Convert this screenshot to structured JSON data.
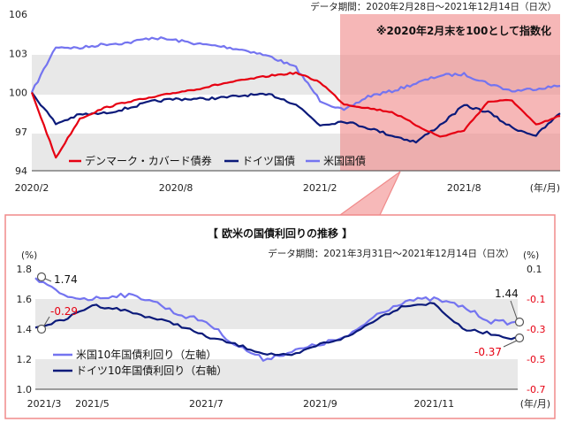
{
  "top_chart": {
    "note": "データ期間：2020年2月28日～2021年12月14日（日次）",
    "annotation": "※2020年2月末を100として指数化",
    "y_ticks": [
      "94",
      "97",
      "100",
      "103",
      "106"
    ],
    "x_ticks": [
      "2020/2",
      "2020/8",
      "2021/2",
      "2021/8"
    ],
    "x_unit": "(年/月)",
    "legend": {
      "denmark": "デンマーク・カバード債券",
      "germany": "ドイツ国債",
      "us": "米国国債"
    }
  },
  "bottom_chart": {
    "title": "【 欧米の国債利回りの推移 】",
    "note": "データ期間：2021年3月31日～2021年12月14日（日次）",
    "y_unit_left": "(%)",
    "y_unit_right": "(%)",
    "y_ticks_left": [
      "1.0",
      "1.2",
      "1.4",
      "1.6",
      "1.8"
    ],
    "y_ticks_right": [
      "-0.7",
      "-0.5",
      "-0.3",
      "-0.1",
      "0.1"
    ],
    "x_ticks": [
      "2021/3",
      "2021/5",
      "2021/7",
      "2021/9",
      "2021/11"
    ],
    "x_unit": "(年/月)",
    "legend": {
      "us10": "米国10年国債利回り（左軸）",
      "de10": "ドイツ10年国債利回り（右軸）"
    },
    "labels": {
      "us_start": "1.74",
      "de_start": "-0.29",
      "us_end": "1.44",
      "de_end": "-0.37"
    }
  },
  "colors": {
    "red": "#e60012",
    "navy": "#0b1a7a",
    "lavender": "#7474f0",
    "shade": "#f08a8a",
    "band": "#e8e8e8"
  },
  "chart_data": [
    {
      "type": "line",
      "x": [
        "2020/2",
        "2020/3",
        "2020/4",
        "2020/5",
        "2020/6",
        "2020/7",
        "2020/8",
        "2020/9",
        "2020/10",
        "2020/11",
        "2020/12",
        "2021/1",
        "2021/2",
        "2021/3",
        "2021/4",
        "2021/5",
        "2021/6",
        "2021/7",
        "2021/8",
        "2021/9",
        "2021/10",
        "2021/11",
        "2021/12"
      ],
      "series": [
        {
          "name": "デンマーク・カバード債券",
          "values": [
            100.0,
            95.0,
            98.0,
            98.8,
            99.3,
            99.6,
            100.0,
            100.3,
            100.7,
            101.0,
            101.3,
            101.5,
            100.8,
            99.1,
            98.8,
            98.5,
            97.5,
            96.6,
            97.1,
            99.3,
            99.4,
            97.5,
            98.2
          ]
        },
        {
          "name": "ドイツ国債",
          "values": [
            100.0,
            97.6,
            98.3,
            98.4,
            98.8,
            99.3,
            99.5,
            99.5,
            99.6,
            99.8,
            99.8,
            99.1,
            97.5,
            97.8,
            97.3,
            96.7,
            96.2,
            97.5,
            99.0,
            98.5,
            97.3,
            96.7,
            98.4
          ]
        },
        {
          "name": "米国国債",
          "values": [
            100.0,
            103.5,
            103.4,
            103.7,
            103.8,
            104.2,
            104.0,
            103.7,
            103.5,
            103.2,
            102.7,
            101.9,
            99.4,
            98.6,
            99.7,
            100.1,
            100.7,
            101.3,
            101.4,
            100.7,
            100.1,
            100.3,
            100.5
          ]
        }
      ],
      "ylim": [
        94,
        106
      ],
      "shaded_from": "2021/3"
    },
    {
      "type": "line",
      "title": "【 欧米の国債利回りの推移 】",
      "x": [
        "2021/3/31",
        "2021/4/15",
        "2021/5/1",
        "2021/5/15",
        "2021/6/1",
        "2021/6/15",
        "2021/7/1",
        "2021/7/15",
        "2021/8/1",
        "2021/8/15",
        "2021/9/1",
        "2021/9/15",
        "2021/10/1",
        "2021/10/15",
        "2021/11/1",
        "2021/11/15",
        "2021/12/1",
        "2021/12/14"
      ],
      "series": [
        {
          "name": "米国10年国債利回り（左軸）",
          "axis": "left",
          "values": [
            1.74,
            1.62,
            1.6,
            1.63,
            1.6,
            1.5,
            1.45,
            1.3,
            1.2,
            1.25,
            1.3,
            1.35,
            1.5,
            1.59,
            1.6,
            1.55,
            1.45,
            1.44
          ]
        },
        {
          "name": "ドイツ10年国債利回り（右軸）",
          "axis": "right",
          "values": [
            -0.29,
            -0.24,
            -0.14,
            -0.17,
            -0.22,
            -0.27,
            -0.35,
            -0.4,
            -0.46,
            -0.48,
            -0.4,
            -0.35,
            -0.23,
            -0.14,
            -0.13,
            -0.3,
            -0.33,
            -0.37
          ]
        }
      ],
      "ylim_left": [
        1.0,
        1.8
      ],
      "ylim_right": [
        -0.7,
        0.1
      ]
    }
  ]
}
